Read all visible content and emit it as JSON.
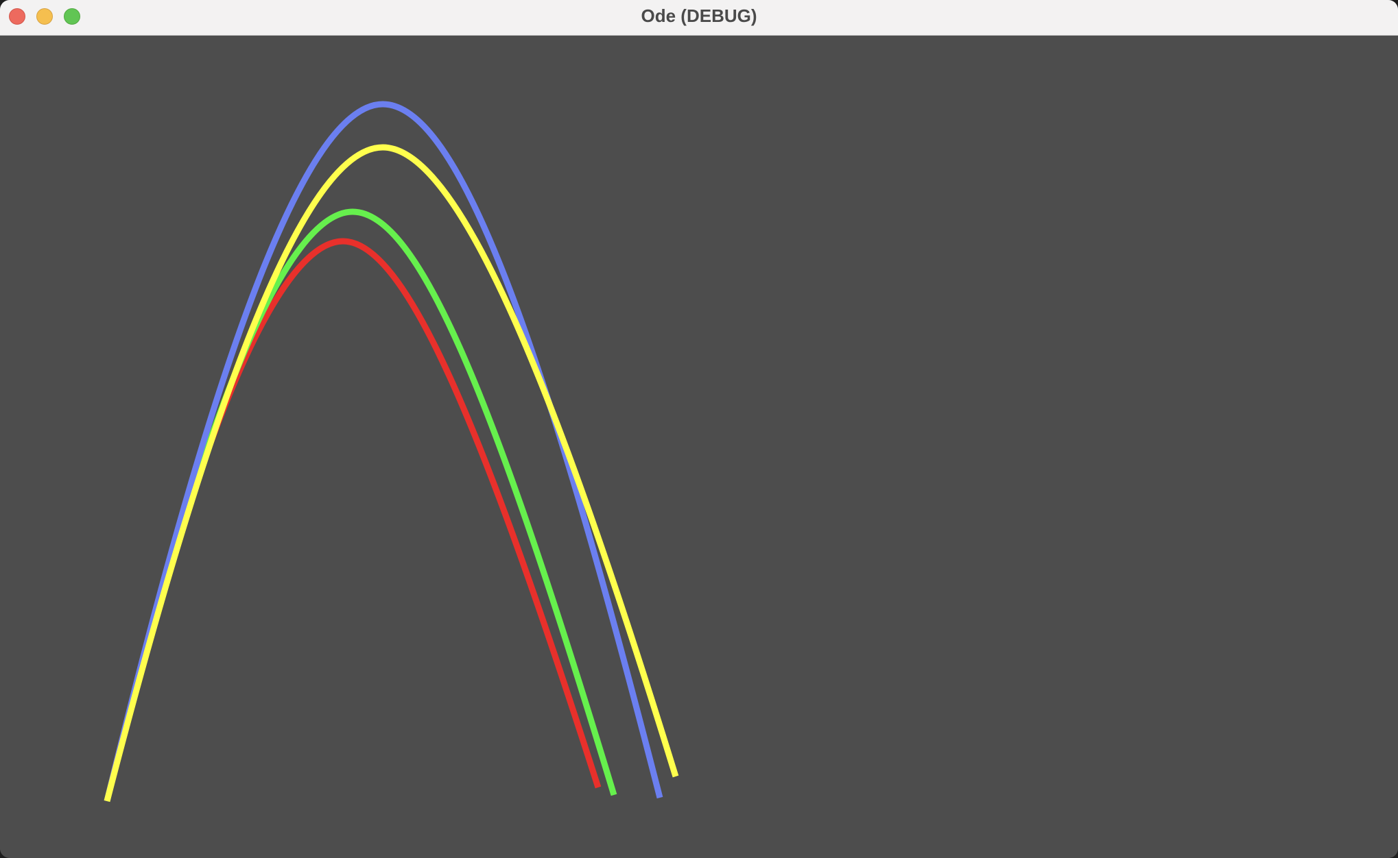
{
  "window": {
    "title": "Ode (DEBUG)"
  },
  "colors": {
    "background": "#4d4d4d",
    "titlebar": "#f3f2f2",
    "curve_blue": "#6b7ff0",
    "curve_yellow": "#ffff4d",
    "curve_green": "#66f04d",
    "curve_red": "#e8302b"
  },
  "curves": [
    {
      "name": "blue-trajectory",
      "color": "#6b7ff0"
    },
    {
      "name": "yellow-trajectory",
      "color": "#ffff4d"
    },
    {
      "name": "green-trajectory",
      "color": "#66f04d"
    },
    {
      "name": "red-trajectory",
      "color": "#e8302b"
    }
  ]
}
